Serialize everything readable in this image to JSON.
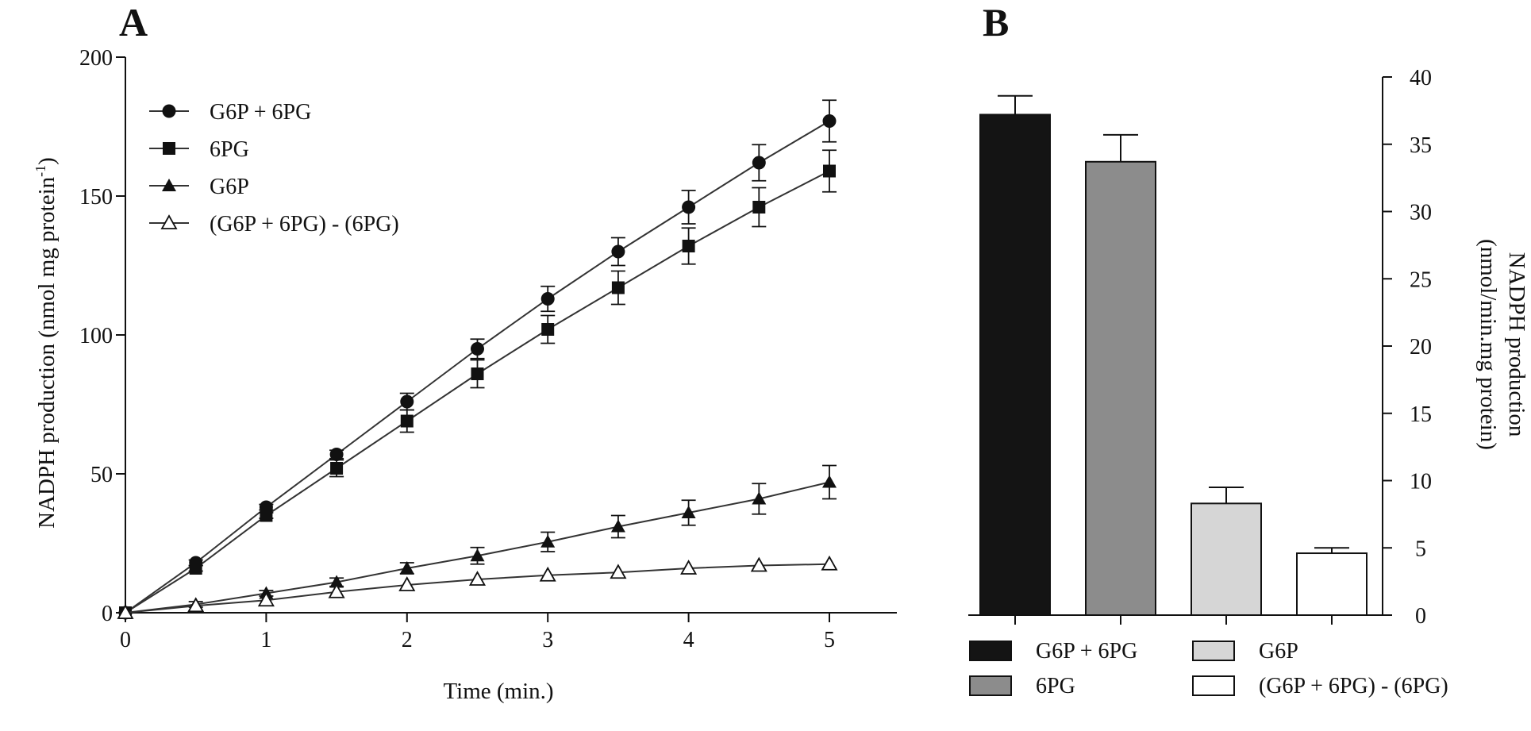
{
  "chart_data": [
    {
      "panel": "A",
      "type": "line",
      "title": "",
      "xlabel": "Time (min.)",
      "ylabel": "NADPH production (nmol mg protein",
      "ylabel_sup": "-1",
      "ylabel_close": ")",
      "xlim": [
        0,
        5.4
      ],
      "ylim": [
        0,
        200
      ],
      "xticks": [
        "0",
        "1",
        "2",
        "3",
        "4",
        "5"
      ],
      "yticks": [
        "0",
        "50",
        "100",
        "150",
        "200"
      ],
      "legend_position": "top-left",
      "x": [
        0,
        0.5,
        1,
        1.5,
        2,
        2.5,
        3,
        3.5,
        4,
        4.5,
        5
      ],
      "series": [
        {
          "name": "G6P + 6PG",
          "marker": "circle",
          "values": [
            0,
            18,
            38,
            57,
            76,
            95,
            113,
            130,
            146,
            162,
            177
          ],
          "errors": [
            0,
            1,
            1,
            1.5,
            3,
            3.5,
            4.5,
            5,
            6,
            6.5,
            7.5
          ]
        },
        {
          "name": "6PG",
          "marker": "square",
          "values": [
            0,
            16,
            35,
            52,
            69,
            86,
            102,
            117,
            132,
            146,
            159
          ],
          "errors": [
            0,
            1,
            1,
            3,
            4,
            5,
            5,
            6,
            6.5,
            7,
            7.5
          ]
        },
        {
          "name": "G6P",
          "marker": "triangle",
          "values": [
            0,
            3,
            7,
            11,
            16,
            20.5,
            25.5,
            31,
            36,
            41,
            47
          ],
          "errors": [
            0,
            1,
            1,
            1.5,
            2,
            3,
            3.5,
            4,
            4.5,
            5.5,
            6
          ]
        },
        {
          "name": "(G6P + 6PG) - (6PG)",
          "marker": "triangle-open",
          "values": [
            0,
            2.5,
            4.5,
            7.5,
            10,
            12,
            13.5,
            14.5,
            16,
            17,
            17.5
          ],
          "errors": [
            0,
            0.5,
            0.5,
            0.5,
            0.5,
            0.5,
            0.5,
            0.5,
            0.5,
            0.5,
            0.5
          ]
        }
      ]
    },
    {
      "panel": "B",
      "type": "bar",
      "title": "",
      "xlabel": "",
      "ylabel_line1": "NADPH production",
      "ylabel_line2": "(nmol/min.mg protein)",
      "ylim": [
        0,
        40
      ],
      "yticks": [
        "0",
        "5",
        "10",
        "15",
        "20",
        "25",
        "30",
        "35",
        "40"
      ],
      "axis_side": "right",
      "legend_position": "bottom",
      "categories": [
        "G6P + 6PG",
        "6PG",
        "G6P",
        "(G6P + 6PG) - (6PG)"
      ],
      "values": [
        37.2,
        33.7,
        8.3,
        4.6
      ],
      "errors": [
        1.4,
        2.0,
        1.2,
        0.4
      ],
      "colors": [
        "#141414",
        "#8c8c8c",
        "#d6d6d6",
        "#ffffff"
      ]
    }
  ]
}
